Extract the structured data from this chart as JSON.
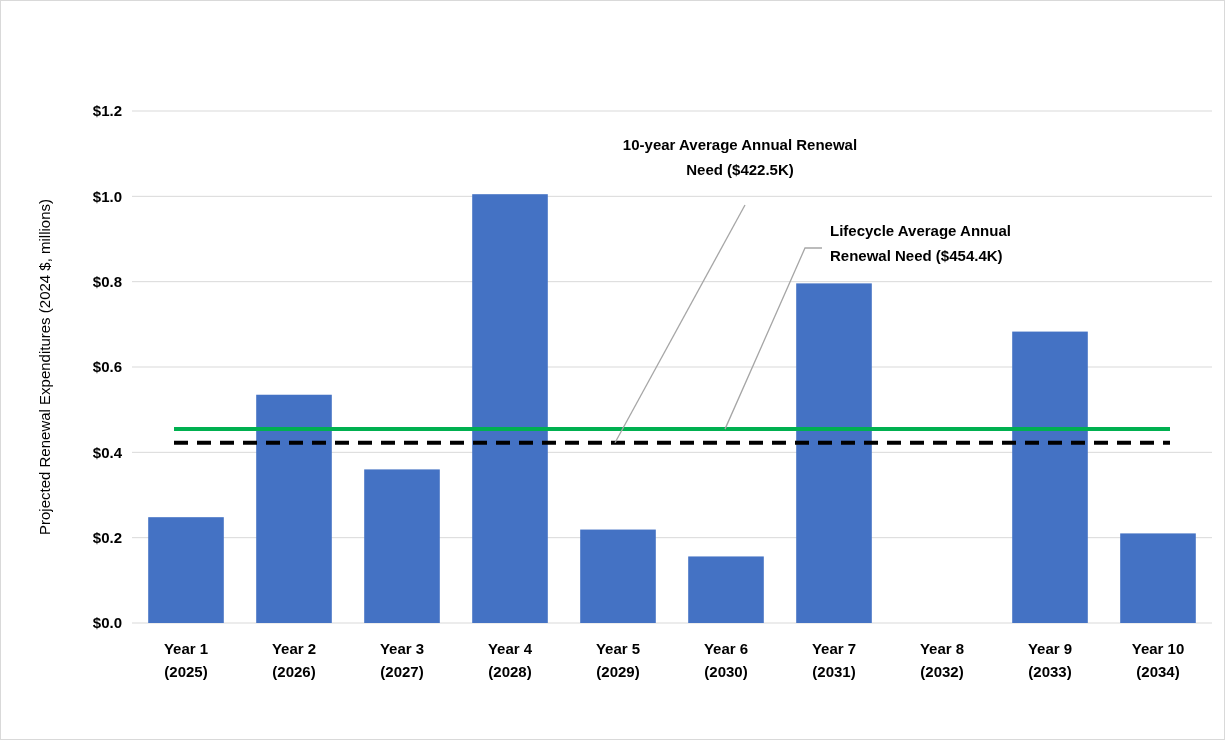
{
  "chart_data": {
    "type": "bar",
    "ylabel": "Projected Renewal Expenditures (2024 $, millions)",
    "categories": [
      "Year 1\n(2025)",
      "Year 2\n(2026)",
      "Year 3\n(2027)",
      "Year 4\n(2028)",
      "Year 5\n(2029)",
      "Year 6\n(2030)",
      "Year 7\n(2031)",
      "Year 8\n(2032)",
      "Year 9\n(2033)",
      "Year 10\n(2034)"
    ],
    "values": [
      0.248,
      0.535,
      0.36,
      1.005,
      0.219,
      0.156,
      0.796,
      0,
      0.683,
      0.21
    ],
    "color": "#4472c4",
    "ylim": [
      0,
      1.2
    ],
    "yticks": [
      {
        "value": 0,
        "label": "$0.0"
      },
      {
        "value": 0.2,
        "label": "$0.2"
      },
      {
        "value": 0.4,
        "label": "$0.4"
      },
      {
        "value": 0.6,
        "label": "$0.6"
      },
      {
        "value": 0.8,
        "label": "$0.8"
      },
      {
        "value": 1.0,
        "label": "$1.0"
      },
      {
        "value": 1.2,
        "label": "$1.2"
      }
    ],
    "grid": "y",
    "ref_lines": [
      {
        "axis": "y",
        "value": 0.4544,
        "label": "Lifecycle Average Annual\nRenewal Need ($454.4K)",
        "color": "#00b050",
        "line_style": "solid"
      },
      {
        "axis": "y",
        "value": 0.4225,
        "label": "10-year Average Annual Renewal\nNeed ($422.5K)",
        "color": "#000000",
        "line_style": "dashed"
      }
    ]
  }
}
